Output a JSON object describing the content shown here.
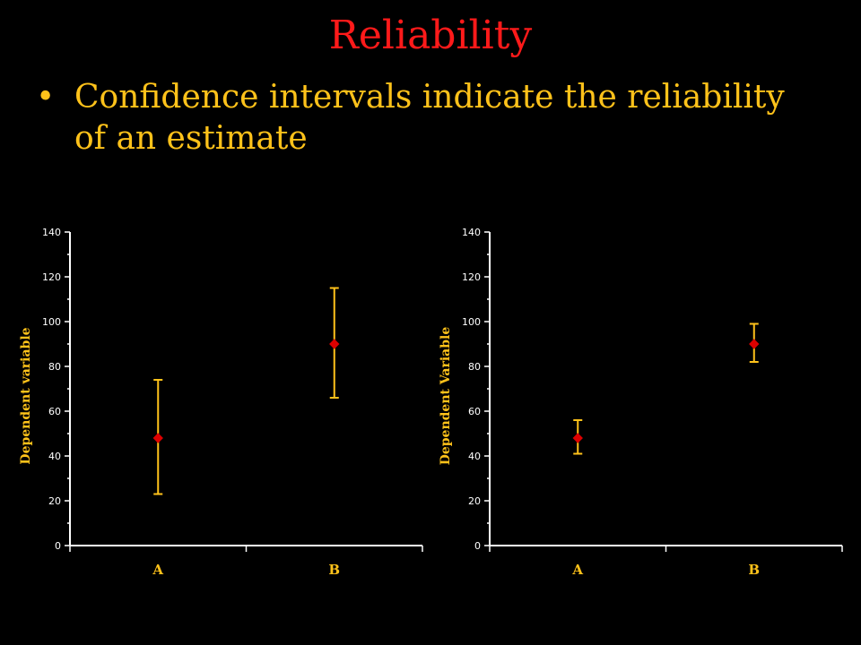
{
  "slide": {
    "title": "Reliability",
    "bullet": "Confidence intervals indicate the reliability of an estimate",
    "bullet_marker": "•"
  },
  "colors": {
    "background": "#000000",
    "title": "#ff1a1a",
    "text": "#ffc21a",
    "axis": "#ffffff",
    "marker": "#dd0000",
    "error_bar": "#ffc21a"
  },
  "chart_data": [
    {
      "type": "scatter",
      "title": "",
      "xlabel": "",
      "ylabel": "Dependent variable",
      "categories": [
        "A",
        "B"
      ],
      "values": [
        48,
        90
      ],
      "ci_lower": [
        23,
        66
      ],
      "ci_upper": [
        74,
        115
      ],
      "ylim": [
        0,
        140
      ],
      "yticks": [
        0,
        20,
        40,
        60,
        80,
        100,
        120,
        140
      ],
      "grid": false,
      "legend": "none"
    },
    {
      "type": "scatter",
      "title": "",
      "xlabel": "",
      "ylabel": "Dependent Variable",
      "categories": [
        "A",
        "B"
      ],
      "values": [
        48,
        90
      ],
      "ci_lower": [
        41,
        82
      ],
      "ci_upper": [
        56,
        99
      ],
      "ylim": [
        0,
        140
      ],
      "yticks": [
        0,
        20,
        40,
        60,
        80,
        100,
        120,
        140
      ],
      "grid": false,
      "legend": "none"
    }
  ]
}
